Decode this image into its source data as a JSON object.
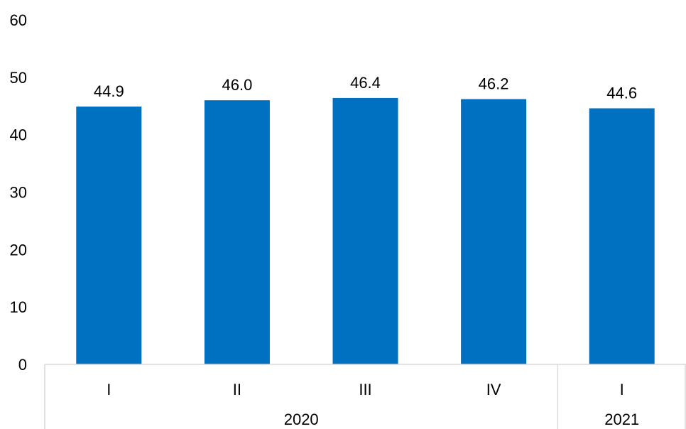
{
  "chart_data": {
    "type": "bar",
    "categories": [
      "I",
      "II",
      "III",
      "IV",
      "I"
    ],
    "groups": [
      {
        "label": "2020",
        "count": 4
      },
      {
        "label": "2021",
        "count": 1
      }
    ],
    "values": [
      44.9,
      46.0,
      46.4,
      46.2,
      44.6
    ],
    "data_labels": [
      "44.9",
      "46.0",
      "46.4",
      "46.2",
      "44.6"
    ],
    "y_ticks": [
      "0",
      "10",
      "20",
      "30",
      "40",
      "50",
      "60"
    ],
    "ylim": [
      0,
      60
    ],
    "grid": false,
    "legend": "none",
    "colors": {
      "bar": "#0070C0",
      "axis": "#D9D9D9"
    }
  }
}
